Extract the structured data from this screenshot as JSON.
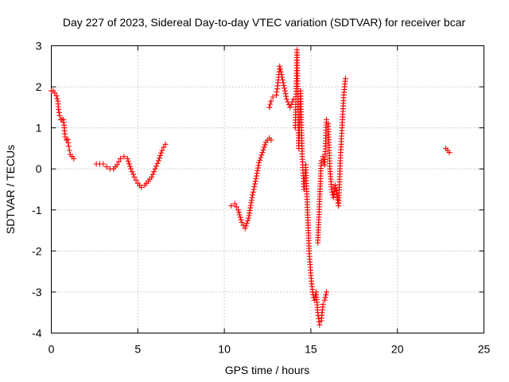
{
  "chart_data": {
    "type": "scatter",
    "title": "Day 227 of 2023, Sidereal Day-to-day VTEC variation (SDTVAR) for receiver bcar",
    "xlabel": "GPS time / hours",
    "ylabel": "SDTVAR / TECUs",
    "xlim": [
      0,
      25
    ],
    "ylim": [
      -4,
      3
    ],
    "xticks": [
      0,
      5,
      10,
      15,
      20,
      25
    ],
    "yticks": [
      -4,
      -3,
      -2,
      -1,
      0,
      1,
      2,
      3
    ],
    "grid": true,
    "marker": "+",
    "color": "#ff0000",
    "series": [
      {
        "name": "SDTVAR",
        "segments": [
          [
            [
              0.0,
              1.9
            ],
            [
              0.1,
              1.9
            ],
            [
              0.2,
              1.85
            ],
            [
              0.3,
              1.78
            ],
            [
              0.38,
              1.65
            ],
            [
              0.42,
              1.45
            ],
            [
              0.48,
              1.3
            ],
            [
              0.55,
              1.2
            ],
            [
              0.62,
              1.2
            ],
            [
              0.7,
              1.2
            ],
            [
              0.75,
              1.0
            ],
            [
              0.8,
              0.78
            ],
            [
              0.88,
              0.7
            ],
            [
              0.95,
              0.72
            ],
            [
              1.0,
              0.55
            ],
            [
              1.05,
              0.45
            ],
            [
              1.1,
              0.35
            ],
            [
              1.2,
              0.3
            ],
            [
              1.3,
              0.25
            ]
          ],
          [
            [
              2.6,
              0.12
            ],
            [
              2.8,
              0.12
            ],
            [
              3.0,
              0.12
            ],
            [
              3.2,
              0.05
            ],
            [
              3.4,
              0.0
            ],
            [
              3.6,
              0.0
            ],
            [
              3.8,
              0.1
            ],
            [
              4.0,
              0.25
            ],
            [
              4.2,
              0.3
            ],
            [
              4.4,
              0.25
            ],
            [
              4.6,
              0.0
            ],
            [
              4.8,
              -0.2
            ],
            [
              5.0,
              -0.35
            ],
            [
              5.2,
              -0.45
            ],
            [
              5.4,
              -0.4
            ],
            [
              5.6,
              -0.3
            ],
            [
              5.8,
              -0.2
            ],
            [
              6.0,
              0.0
            ],
            [
              6.2,
              0.2
            ],
            [
              6.4,
              0.45
            ],
            [
              6.6,
              0.6
            ]
          ],
          [
            [
              10.4,
              -0.9
            ],
            [
              10.6,
              -0.85
            ],
            [
              10.8,
              -1.0
            ],
            [
              11.0,
              -1.3
            ],
            [
              11.2,
              -1.45
            ],
            [
              11.4,
              -1.2
            ],
            [
              11.6,
              -0.7
            ],
            [
              11.8,
              -0.3
            ],
            [
              12.0,
              0.15
            ],
            [
              12.2,
              0.4
            ],
            [
              12.4,
              0.65
            ],
            [
              12.6,
              0.75
            ],
            [
              12.7,
              0.7
            ]
          ],
          [
            [
              12.6,
              1.5
            ],
            [
              12.7,
              1.65
            ],
            [
              12.8,
              1.75
            ],
            [
              13.0,
              1.8
            ],
            [
              13.1,
              2.1
            ],
            [
              13.2,
              2.5
            ],
            [
              13.3,
              2.3
            ],
            [
              13.4,
              2.1
            ],
            [
              13.6,
              1.7
            ],
            [
              13.8,
              1.5
            ],
            [
              14.0,
              1.7
            ]
          ],
          [
            [
              14.1,
              1.0
            ],
            [
              14.2,
              2.9
            ],
            [
              14.3,
              0.5
            ],
            [
              14.4,
              1.9
            ],
            [
              14.5,
              0.3
            ],
            [
              14.6,
              -0.5
            ],
            [
              14.7,
              0.1
            ],
            [
              14.8,
              -1.0
            ],
            [
              14.9,
              -2.0
            ],
            [
              15.0,
              -2.6
            ],
            [
              15.1,
              -3.0
            ],
            [
              15.2,
              -3.2
            ],
            [
              15.3,
              -3.0
            ],
            [
              15.4,
              -3.5
            ],
            [
              15.5,
              -3.8
            ],
            [
              15.6,
              -3.7
            ],
            [
              15.7,
              -3.3
            ],
            [
              15.8,
              -3.2
            ],
            [
              15.9,
              -3.0
            ]
          ],
          [
            [
              15.4,
              -1.8
            ],
            [
              15.5,
              -0.8
            ],
            [
              15.6,
              0.2
            ],
            [
              15.7,
              0.3
            ],
            [
              15.8,
              0.1
            ],
            [
              15.9,
              1.2
            ],
            [
              16.0,
              1.1
            ],
            [
              16.1,
              0.0
            ],
            [
              16.2,
              -0.5
            ],
            [
              16.3,
              -0.7
            ],
            [
              16.4,
              -0.4
            ],
            [
              16.5,
              -0.6
            ],
            [
              16.6,
              -0.9
            ],
            [
              16.7,
              0.2
            ],
            [
              16.8,
              1.0
            ],
            [
              16.9,
              1.8
            ],
            [
              17.0,
              2.2
            ]
          ],
          [
            [
              22.8,
              0.5
            ],
            [
              22.9,
              0.45
            ],
            [
              23.0,
              0.4
            ]
          ]
        ]
      }
    ]
  }
}
